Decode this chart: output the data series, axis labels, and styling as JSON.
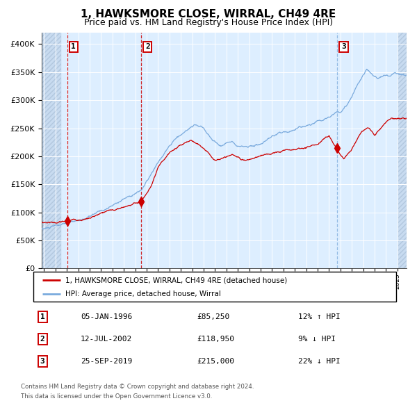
{
  "title": "1, HAWKSMORE CLOSE, WIRRAL, CH49 4RE",
  "subtitle": "Price paid vs. HM Land Registry's House Price Index (HPI)",
  "title_fontsize": 11,
  "subtitle_fontsize": 9,
  "background_color": "#ffffff",
  "plot_bg_color": "#ddeeff",
  "grid_color": "#ffffff",
  "hatch_color": "#b8cce4",
  "red_line_color": "#cc0000",
  "blue_line_color": "#7aaadd",
  "vline1_color": "#cc0000",
  "vline2_color": "#cc0000",
  "vline3_color": "#7aaadd",
  "purchase1": {
    "date_x": 1996.03,
    "price": 85250,
    "label": "1"
  },
  "purchase2": {
    "date_x": 2002.53,
    "price": 118950,
    "label": "2"
  },
  "purchase3": {
    "date_x": 2019.73,
    "price": 215000,
    "label": "3"
  },
  "ylim": [
    0,
    420000
  ],
  "xlim_start": 1993.8,
  "xlim_end": 2025.8,
  "hatch_left_end": 1995.5,
  "hatch_right_start": 2025.0,
  "legend_line1": "1, HAWKSMORE CLOSE, WIRRAL, CH49 4RE (detached house)",
  "legend_line2": "HPI: Average price, detached house, Wirral",
  "table_rows": [
    {
      "num": "1",
      "date": "05-JAN-1996",
      "price": "£85,250",
      "hpi": "12% ↑ HPI"
    },
    {
      "num": "2",
      "date": "12-JUL-2002",
      "price": "£118,950",
      "hpi": "9% ↓ HPI"
    },
    {
      "num": "3",
      "date": "25-SEP-2019",
      "price": "£215,000",
      "hpi": "22% ↓ HPI"
    }
  ],
  "footer1": "Contains HM Land Registry data © Crown copyright and database right 2024.",
  "footer2": "This data is licensed under the Open Government Licence v3.0."
}
